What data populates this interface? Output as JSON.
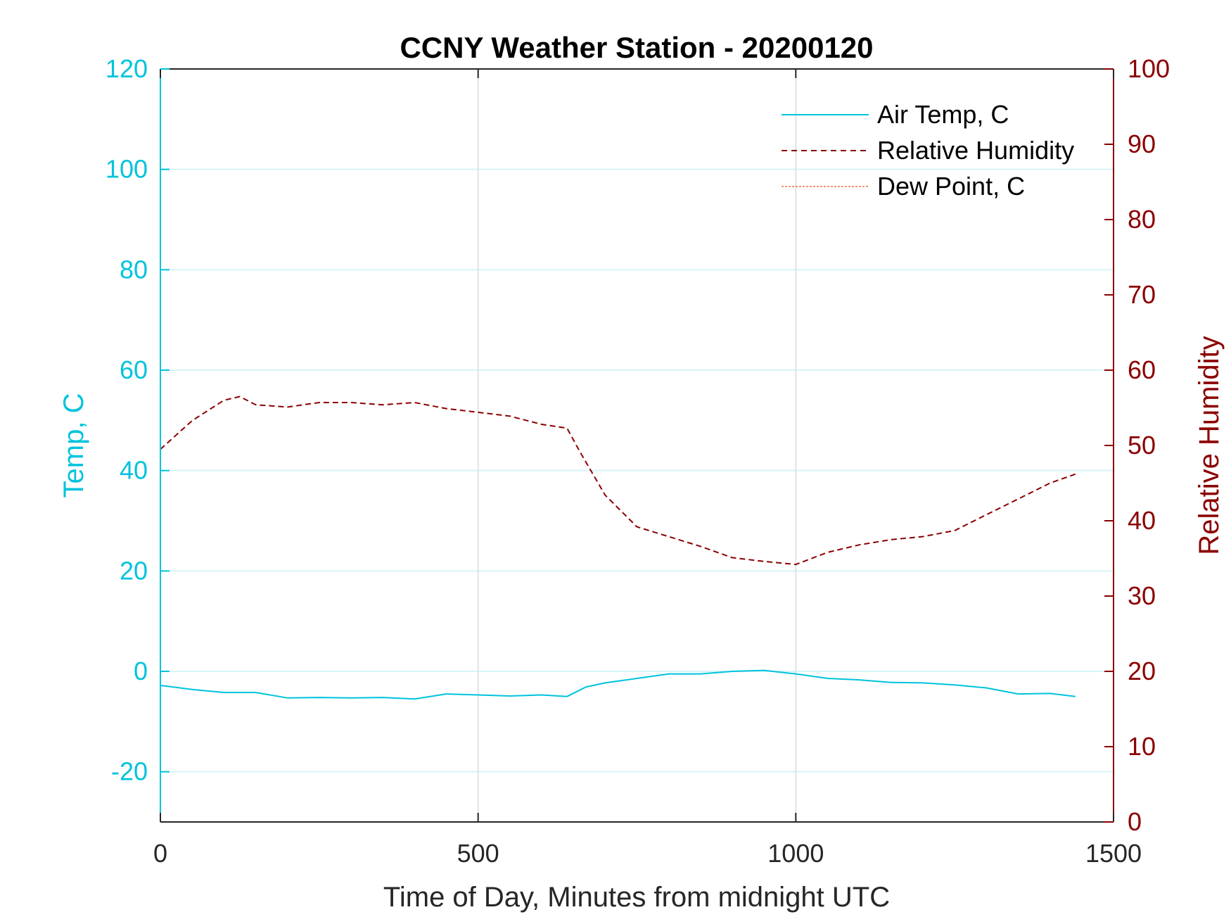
{
  "chart_data": {
    "type": "line",
    "title": "CCNY Weather Station - 20200120",
    "xlabel": "Time of Day, Minutes from midnight UTC",
    "ylabel_left": "Temp, C",
    "ylabel_right": "Relative Humidity",
    "xlim": [
      0,
      1500
    ],
    "ylim_left": [
      -30,
      120
    ],
    "ylim_right": [
      0,
      100
    ],
    "xticks": [
      0,
      500,
      1000,
      1500
    ],
    "yticks_left": [
      -20,
      0,
      20,
      40,
      60,
      80,
      100,
      120
    ],
    "yticks_right": [
      0,
      10,
      20,
      30,
      40,
      50,
      60,
      70,
      80,
      90,
      100
    ],
    "grid": true,
    "legend_position": "top-right",
    "colors": {
      "left_axis": "#00c3dc",
      "right_axis": "#8b0000",
      "dew": "#f07040",
      "axis": "#262626"
    },
    "series": [
      {
        "name": "Air Temp, C",
        "axis": "left",
        "style": "solid",
        "color": "#00c3dc",
        "x": [
          0,
          50,
          100,
          150,
          200,
          250,
          300,
          350,
          400,
          450,
          500,
          550,
          600,
          640,
          670,
          700,
          750,
          800,
          850,
          900,
          950,
          1000,
          1050,
          1100,
          1150,
          1200,
          1250,
          1300,
          1350,
          1400,
          1440
        ],
        "y": [
          -2.8,
          -3.6,
          -4.2,
          -4.2,
          -5.3,
          -5.2,
          -5.3,
          -5.2,
          -5.5,
          -4.5,
          -4.7,
          -4.9,
          -4.7,
          -5.0,
          -3.1,
          -2.3,
          -1.4,
          -0.5,
          -0.5,
          0.0,
          0.2,
          -0.5,
          -1.4,
          -1.7,
          -2.2,
          -2.3,
          -2.7,
          -3.3,
          -4.5,
          -4.4,
          -5.0
        ]
      },
      {
        "name": "Relative Humidity",
        "axis": "right",
        "style": "dashed",
        "color": "#8b0000",
        "x": [
          0,
          50,
          100,
          125,
          150,
          200,
          250,
          300,
          350,
          400,
          450,
          500,
          550,
          600,
          640,
          660,
          700,
          750,
          800,
          850,
          900,
          950,
          1000,
          1050,
          1100,
          1150,
          1200,
          1250,
          1300,
          1350,
          1400,
          1440
        ],
        "y": [
          49.5,
          53.3,
          56.0,
          56.5,
          55.4,
          55.1,
          55.7,
          55.7,
          55.4,
          55.7,
          54.9,
          54.4,
          53.9,
          52.8,
          52.3,
          49.2,
          43.4,
          39.2,
          37.9,
          36.6,
          35.1,
          34.6,
          34.2,
          35.8,
          36.8,
          37.5,
          37.9,
          38.7,
          40.8,
          42.9,
          45.0,
          46.2
        ]
      },
      {
        "name": "Dew Point, C",
        "axis": "left",
        "style": "dotted",
        "color": "#f07040",
        "x": [],
        "y": []
      }
    ]
  }
}
